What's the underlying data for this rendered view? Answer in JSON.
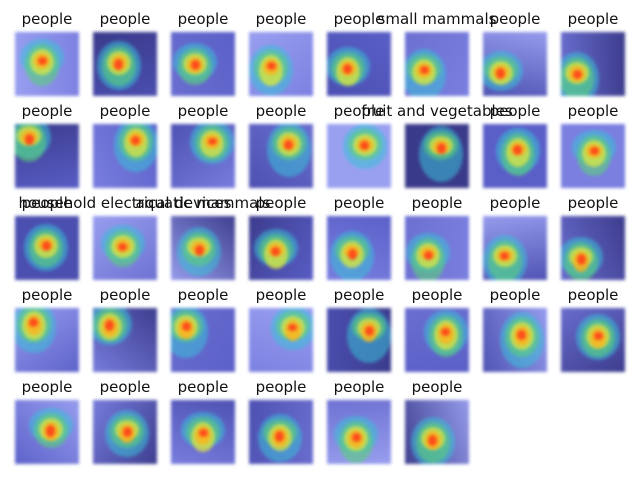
{
  "figure": {
    "panels": [
      {
        "title": "people"
      },
      {
        "title": "people"
      },
      {
        "title": "people"
      },
      {
        "title": "people"
      },
      {
        "title": "people"
      },
      {
        "title": "small mammals"
      },
      {
        "title": "people"
      },
      {
        "title": "people"
      },
      {
        "title": "people"
      },
      {
        "title": "people"
      },
      {
        "title": "people"
      },
      {
        "title": "people"
      },
      {
        "title": "people"
      },
      {
        "title": "fruit and vegetables"
      },
      {
        "title": "people"
      },
      {
        "title": "people"
      },
      {
        "title": "people"
      },
      {
        "title": "household electrical devices"
      },
      {
        "title": "aquatic mammals"
      },
      {
        "title": "people"
      },
      {
        "title": "people"
      },
      {
        "title": "people"
      },
      {
        "title": "people"
      },
      {
        "title": "people"
      },
      {
        "title": "people"
      },
      {
        "title": "people"
      },
      {
        "title": "people"
      },
      {
        "title": "people"
      },
      {
        "title": "people"
      },
      {
        "title": "people"
      },
      {
        "title": "people"
      },
      {
        "title": "people"
      },
      {
        "title": "people"
      },
      {
        "title": "people"
      },
      {
        "title": "people"
      },
      {
        "title": "people"
      },
      {
        "title": "people"
      },
      {
        "title": "people"
      }
    ]
  },
  "colors": {
    "base_palette": [
      "#7a7fe0",
      "#5a5fc8",
      "#3a3a8a",
      "#9aa0f0",
      "#6b6fd0",
      "#4b4fb0"
    ],
    "heat_palette": [
      "#ff3a1a",
      "#ffb21a",
      "#e8e83a",
      "#5ad07a",
      "#3ac0d8"
    ]
  }
}
